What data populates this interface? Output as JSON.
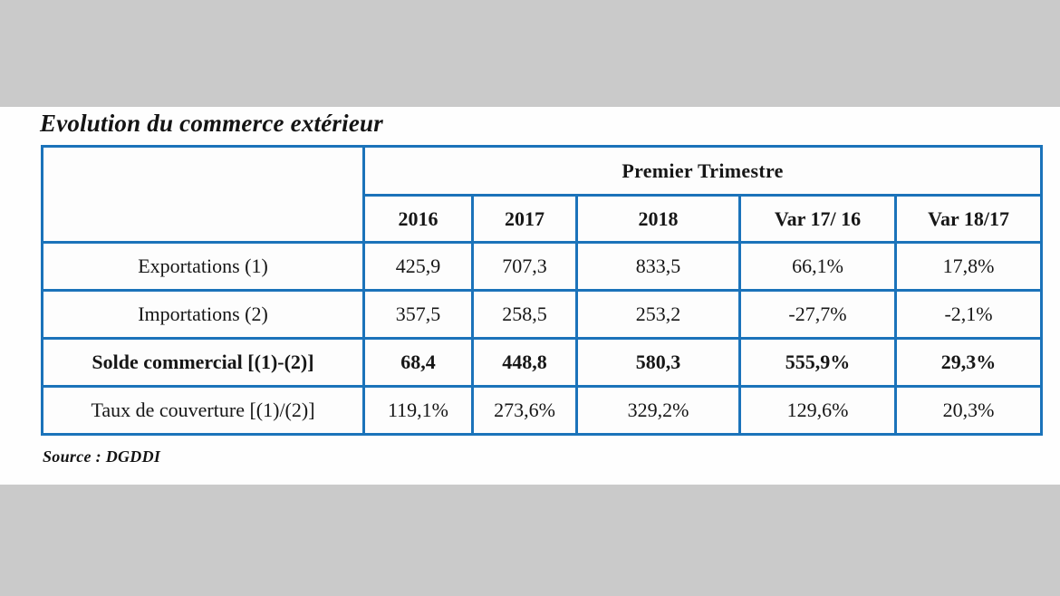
{
  "title": "Evolution du commerce extérieur",
  "source_note": "Source : DGDDI",
  "table": {
    "group_header": "Premier Trimestre",
    "corner": "",
    "columns": [
      "2016",
      "2017",
      "2018",
      "Var 17/ 16",
      "Var 18/17"
    ],
    "rows": [
      {
        "label": "Exportations (1)",
        "values": [
          "425,9",
          "707,3",
          "833,5",
          "66,1%",
          "17,8%"
        ]
      },
      {
        "label": "Importations (2)",
        "values": [
          "357,5",
          "258,5",
          "253,2",
          "-27,7%",
          "-2,1%"
        ]
      },
      {
        "label": "Solde commercial [(1)-(2)]",
        "values": [
          "68,4",
          "448,8",
          "580,3",
          "555,9%",
          "29,3%"
        ]
      },
      {
        "label": "Taux de couverture [(1)/(2)]",
        "values": [
          "119,1%",
          "273,6%",
          "329,2%",
          "129,6%",
          "20,3%"
        ]
      }
    ]
  },
  "colors": {
    "table_border": "#1b73ba",
    "banner_gray": "#cacaca",
    "text": "#161616",
    "cell_background": "#fdfdfd"
  }
}
